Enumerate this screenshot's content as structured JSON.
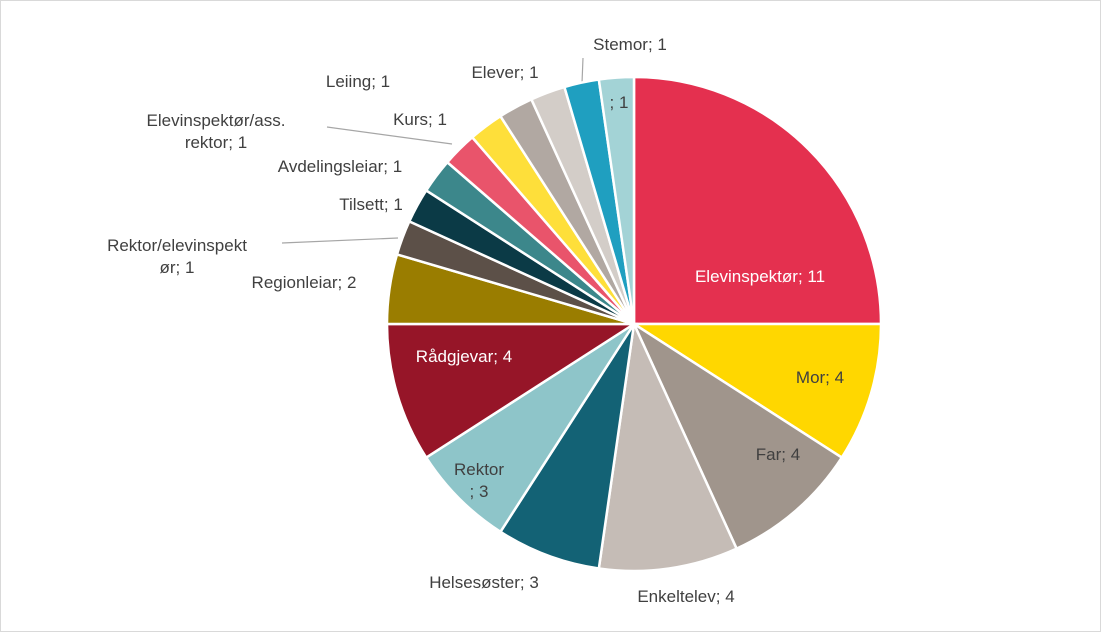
{
  "chart_data": {
    "type": "pie",
    "values": [
      11,
      4,
      4,
      4,
      3,
      3,
      4,
      2,
      1,
      1,
      1,
      1,
      1,
      1,
      1,
      1,
      1
    ],
    "value_labels": [
      "Elevinspektør; 11",
      "Mor; 4",
      "Far; 4",
      "Enkeltelev; 4",
      "Helsesøster; 3",
      "Rektor\n; 3",
      "Rådgjevar; 4",
      "Regionleiar; 2",
      "Rektor/elevinspekt\nør; 1",
      "Tilsett; 1",
      "Avdelingsleiar; 1",
      "Elevinspektør/ass.\nrektor; 1",
      "Kurs; 1",
      "Leiing; 1",
      "Elever; 1",
      "Stemor; 1",
      "; 1"
    ],
    "colors": [
      "#e4304f",
      "#ffd700",
      "#a0958c",
      "#c5bcb6",
      "#136275",
      "#8ec5c9",
      "#961528",
      "#9a7d00",
      "#5c5048",
      "#0b3a46",
      "#3c878b",
      "#e9546b",
      "#fedf3a",
      "#b1a8a2",
      "#d3cdc8",
      "#1f9fc0",
      "#a3d3d6"
    ]
  }
}
